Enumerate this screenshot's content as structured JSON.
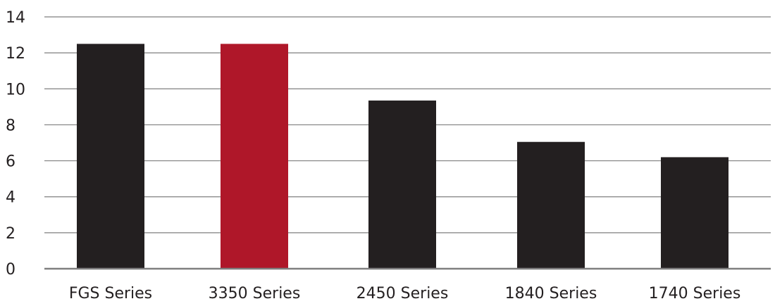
{
  "chart_data": {
    "type": "bar",
    "title": "",
    "xlabel": "",
    "ylabel": "",
    "categories": [
      "FGS Series",
      "3350 Series",
      "2450 Series",
      "1840 Series",
      "1740 Series"
    ],
    "values": [
      12.5,
      12.5,
      9.35,
      7.05,
      6.2
    ],
    "ylim": [
      0,
      14
    ],
    "yticks": [
      "0",
      "2",
      "4",
      "6",
      "8",
      "10",
      "12",
      "14"
    ],
    "grid": true,
    "legend": "none",
    "colors": {
      "default": "#231f20",
      "highlight": "#af1729",
      "highlight_category": "3350 Series"
    }
  }
}
